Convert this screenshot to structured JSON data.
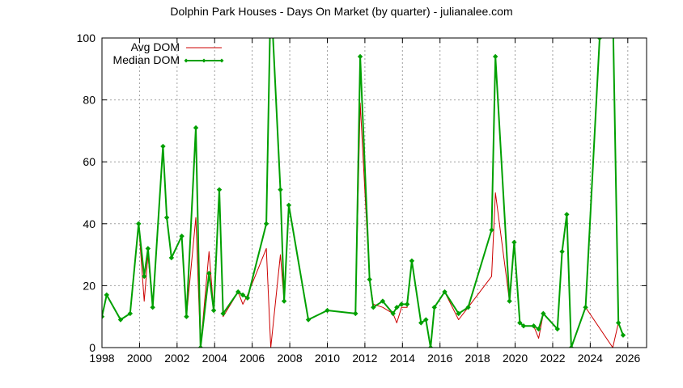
{
  "chart_data": {
    "type": "line",
    "title": "Dolphin Park Houses - Days On Market (by quarter) - julianalee.com",
    "xlabel": "",
    "ylabel": "",
    "xlim": [
      1998,
      2027
    ],
    "ylim": [
      0,
      100
    ],
    "xticks": [
      1998,
      2000,
      2002,
      2004,
      2006,
      2008,
      2010,
      2012,
      2014,
      2016,
      2018,
      2020,
      2022,
      2024,
      2026
    ],
    "yticks": [
      0,
      20,
      40,
      60,
      80,
      100
    ],
    "grid": true,
    "legend_position": "top-left",
    "series": [
      {
        "name": "Avg DOM",
        "color": "#cc0000",
        "marker": "none",
        "points": [
          [
            1998.0,
            10
          ],
          [
            1998.25,
            17
          ],
          [
            1998.99,
            9
          ],
          [
            1999.5,
            11
          ],
          [
            1999.95,
            40
          ],
          [
            2000.25,
            15
          ],
          [
            2000.45,
            30
          ],
          [
            2000.7,
            13
          ],
          [
            2001.25,
            65
          ],
          [
            2001.45,
            42
          ],
          [
            2001.7,
            29
          ],
          [
            2002.25,
            36
          ],
          [
            2002.5,
            10
          ],
          [
            2003.0,
            42
          ],
          [
            2003.25,
            0
          ],
          [
            2003.7,
            31
          ],
          [
            2003.95,
            12
          ],
          [
            2004.25,
            51
          ],
          [
            2004.45,
            10
          ],
          [
            2005.25,
            18
          ],
          [
            2005.5,
            14
          ],
          [
            2005.75,
            17
          ],
          [
            2006.75,
            32
          ],
          [
            2006.99,
            0
          ],
          [
            2007.5,
            30
          ],
          [
            2007.7,
            15
          ],
          [
            2007.95,
            46
          ],
          [
            2008.99,
            9
          ],
          [
            2010.0,
            12
          ],
          [
            2011.5,
            11
          ],
          [
            2011.75,
            79
          ],
          [
            2012.25,
            22
          ],
          [
            2012.45,
            14
          ],
          [
            2012.95,
            13
          ],
          [
            2013.5,
            11
          ],
          [
            2013.7,
            8
          ],
          [
            2013.95,
            13
          ],
          [
            2014.25,
            13
          ],
          [
            2014.5,
            28
          ],
          [
            2014.99,
            8
          ],
          [
            2015.25,
            9
          ],
          [
            2015.5,
            0
          ],
          [
            2015.7,
            13
          ],
          [
            2016.25,
            18
          ],
          [
            2016.99,
            9
          ],
          [
            2017.5,
            13
          ],
          [
            2018.75,
            23
          ],
          [
            2018.95,
            50
          ],
          [
            2019.7,
            15
          ],
          [
            2019.95,
            34
          ],
          [
            2020.25,
            8
          ],
          [
            2020.45,
            7
          ],
          [
            2020.99,
            7
          ],
          [
            2021.25,
            3
          ],
          [
            2021.5,
            11
          ],
          [
            2022.25,
            6
          ],
          [
            2022.5,
            31
          ],
          [
            2022.75,
            43
          ],
          [
            2022.99,
            0
          ],
          [
            2023.75,
            13
          ],
          [
            2025.2,
            0
          ],
          [
            2025.5,
            8
          ],
          [
            2025.75,
            4
          ]
        ]
      },
      {
        "name": "Median DOM",
        "color": "#00a000",
        "marker": "diamond",
        "points": [
          [
            1998.0,
            10
          ],
          [
            1998.25,
            17
          ],
          [
            1998.99,
            9
          ],
          [
            1999.5,
            11
          ],
          [
            1999.95,
            40
          ],
          [
            2000.25,
            23
          ],
          [
            2000.45,
            32
          ],
          [
            2000.7,
            13
          ],
          [
            2001.25,
            65
          ],
          [
            2001.45,
            42
          ],
          [
            2001.7,
            29
          ],
          [
            2002.25,
            36
          ],
          [
            2002.5,
            10
          ],
          [
            2003.0,
            71
          ],
          [
            2003.25,
            0
          ],
          [
            2003.7,
            24
          ],
          [
            2003.95,
            12
          ],
          [
            2004.25,
            51
          ],
          [
            2004.45,
            11
          ],
          [
            2005.25,
            18
          ],
          [
            2005.5,
            17
          ],
          [
            2005.75,
            16
          ],
          [
            2006.75,
            40
          ],
          [
            2006.99,
            115
          ],
          [
            2007.5,
            51
          ],
          [
            2007.7,
            15
          ],
          [
            2007.95,
            46
          ],
          [
            2008.99,
            9
          ],
          [
            2010.0,
            12
          ],
          [
            2011.5,
            11
          ],
          [
            2011.75,
            94
          ],
          [
            2012.25,
            22
          ],
          [
            2012.45,
            13
          ],
          [
            2012.95,
            15
          ],
          [
            2013.5,
            11
          ],
          [
            2013.7,
            13
          ],
          [
            2013.95,
            14
          ],
          [
            2014.25,
            14
          ],
          [
            2014.5,
            28
          ],
          [
            2014.99,
            8
          ],
          [
            2015.25,
            9
          ],
          [
            2015.5,
            0
          ],
          [
            2015.7,
            13
          ],
          [
            2016.25,
            18
          ],
          [
            2016.99,
            11
          ],
          [
            2017.5,
            13
          ],
          [
            2018.75,
            38
          ],
          [
            2018.95,
            94
          ],
          [
            2019.7,
            15
          ],
          [
            2019.95,
            34
          ],
          [
            2020.25,
            8
          ],
          [
            2020.45,
            7
          ],
          [
            2020.99,
            7
          ],
          [
            2021.25,
            6
          ],
          [
            2021.5,
            11
          ],
          [
            2022.25,
            6
          ],
          [
            2022.5,
            31
          ],
          [
            2022.75,
            43
          ],
          [
            2022.99,
            0
          ],
          [
            2023.75,
            13
          ],
          [
            2024.5,
            100
          ],
          [
            2025.2,
            110
          ],
          [
            2025.5,
            8
          ],
          [
            2025.75,
            4
          ]
        ]
      }
    ]
  }
}
